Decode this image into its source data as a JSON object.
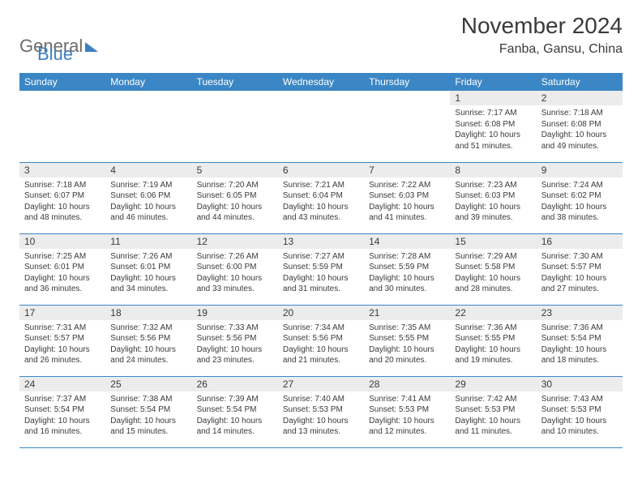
{
  "logo": {
    "word1": "General",
    "word2": "Blue"
  },
  "title": "November 2024",
  "location": "Fanba, Gansu, China",
  "colors": {
    "header_bg": "#3b86c4",
    "header_text": "#ffffff",
    "daynum_bg": "#ececec",
    "border": "#3b86c4",
    "text": "#3a3a3a",
    "logo_gray": "#6b6b6b",
    "logo_blue": "#3b7fbf",
    "page_bg": "#ffffff"
  },
  "typography": {
    "title_fontsize": 28,
    "location_fontsize": 16,
    "weekday_fontsize": 12,
    "daynum_fontsize": 12,
    "body_fontsize": 10
  },
  "weekdays": [
    "Sunday",
    "Monday",
    "Tuesday",
    "Wednesday",
    "Thursday",
    "Friday",
    "Saturday"
  ],
  "weeks": [
    [
      null,
      null,
      null,
      null,
      null,
      {
        "n": "1",
        "sr": "7:17 AM",
        "ss": "6:08 PM",
        "dl": "10 hours and 51 minutes."
      },
      {
        "n": "2",
        "sr": "7:18 AM",
        "ss": "6:08 PM",
        "dl": "10 hours and 49 minutes."
      }
    ],
    [
      {
        "n": "3",
        "sr": "7:18 AM",
        "ss": "6:07 PM",
        "dl": "10 hours and 48 minutes."
      },
      {
        "n": "4",
        "sr": "7:19 AM",
        "ss": "6:06 PM",
        "dl": "10 hours and 46 minutes."
      },
      {
        "n": "5",
        "sr": "7:20 AM",
        "ss": "6:05 PM",
        "dl": "10 hours and 44 minutes."
      },
      {
        "n": "6",
        "sr": "7:21 AM",
        "ss": "6:04 PM",
        "dl": "10 hours and 43 minutes."
      },
      {
        "n": "7",
        "sr": "7:22 AM",
        "ss": "6:03 PM",
        "dl": "10 hours and 41 minutes."
      },
      {
        "n": "8",
        "sr": "7:23 AM",
        "ss": "6:03 PM",
        "dl": "10 hours and 39 minutes."
      },
      {
        "n": "9",
        "sr": "7:24 AM",
        "ss": "6:02 PM",
        "dl": "10 hours and 38 minutes."
      }
    ],
    [
      {
        "n": "10",
        "sr": "7:25 AM",
        "ss": "6:01 PM",
        "dl": "10 hours and 36 minutes."
      },
      {
        "n": "11",
        "sr": "7:26 AM",
        "ss": "6:01 PM",
        "dl": "10 hours and 34 minutes."
      },
      {
        "n": "12",
        "sr": "7:26 AM",
        "ss": "6:00 PM",
        "dl": "10 hours and 33 minutes."
      },
      {
        "n": "13",
        "sr": "7:27 AM",
        "ss": "5:59 PM",
        "dl": "10 hours and 31 minutes."
      },
      {
        "n": "14",
        "sr": "7:28 AM",
        "ss": "5:59 PM",
        "dl": "10 hours and 30 minutes."
      },
      {
        "n": "15",
        "sr": "7:29 AM",
        "ss": "5:58 PM",
        "dl": "10 hours and 28 minutes."
      },
      {
        "n": "16",
        "sr": "7:30 AM",
        "ss": "5:57 PM",
        "dl": "10 hours and 27 minutes."
      }
    ],
    [
      {
        "n": "17",
        "sr": "7:31 AM",
        "ss": "5:57 PM",
        "dl": "10 hours and 26 minutes."
      },
      {
        "n": "18",
        "sr": "7:32 AM",
        "ss": "5:56 PM",
        "dl": "10 hours and 24 minutes."
      },
      {
        "n": "19",
        "sr": "7:33 AM",
        "ss": "5:56 PM",
        "dl": "10 hours and 23 minutes."
      },
      {
        "n": "20",
        "sr": "7:34 AM",
        "ss": "5:56 PM",
        "dl": "10 hours and 21 minutes."
      },
      {
        "n": "21",
        "sr": "7:35 AM",
        "ss": "5:55 PM",
        "dl": "10 hours and 20 minutes."
      },
      {
        "n": "22",
        "sr": "7:36 AM",
        "ss": "5:55 PM",
        "dl": "10 hours and 19 minutes."
      },
      {
        "n": "23",
        "sr": "7:36 AM",
        "ss": "5:54 PM",
        "dl": "10 hours and 18 minutes."
      }
    ],
    [
      {
        "n": "24",
        "sr": "7:37 AM",
        "ss": "5:54 PM",
        "dl": "10 hours and 16 minutes."
      },
      {
        "n": "25",
        "sr": "7:38 AM",
        "ss": "5:54 PM",
        "dl": "10 hours and 15 minutes."
      },
      {
        "n": "26",
        "sr": "7:39 AM",
        "ss": "5:54 PM",
        "dl": "10 hours and 14 minutes."
      },
      {
        "n": "27",
        "sr": "7:40 AM",
        "ss": "5:53 PM",
        "dl": "10 hours and 13 minutes."
      },
      {
        "n": "28",
        "sr": "7:41 AM",
        "ss": "5:53 PM",
        "dl": "10 hours and 12 minutes."
      },
      {
        "n": "29",
        "sr": "7:42 AM",
        "ss": "5:53 PM",
        "dl": "10 hours and 11 minutes."
      },
      {
        "n": "30",
        "sr": "7:43 AM",
        "ss": "5:53 PM",
        "dl": "10 hours and 10 minutes."
      }
    ]
  ],
  "labels": {
    "sunrise": "Sunrise: ",
    "sunset": "Sunset: ",
    "daylight": "Daylight: "
  }
}
